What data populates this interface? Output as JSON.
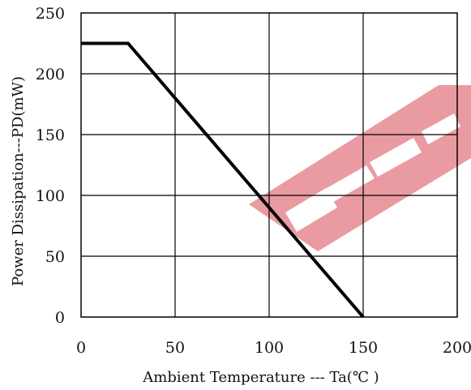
{
  "chart_data": {
    "type": "line",
    "title": "",
    "xlabel": "Ambient Temperature --- Ta(℃ )",
    "ylabel": "Power Dissipation---PD(mW)",
    "xlim": [
      0,
      200
    ],
    "ylim": [
      0,
      250
    ],
    "x_ticks": [
      "0",
      "50",
      "100",
      "150",
      "200"
    ],
    "y_ticks": [
      "0",
      "50",
      "100",
      "150",
      "200",
      "250"
    ],
    "grid": true,
    "series": [
      {
        "x": [
          0,
          25,
          150
        ],
        "y": [
          225,
          225,
          0
        ]
      }
    ]
  },
  "colors": {
    "line": "#000000",
    "grid": "#000000",
    "watermark": "#e8969c"
  }
}
